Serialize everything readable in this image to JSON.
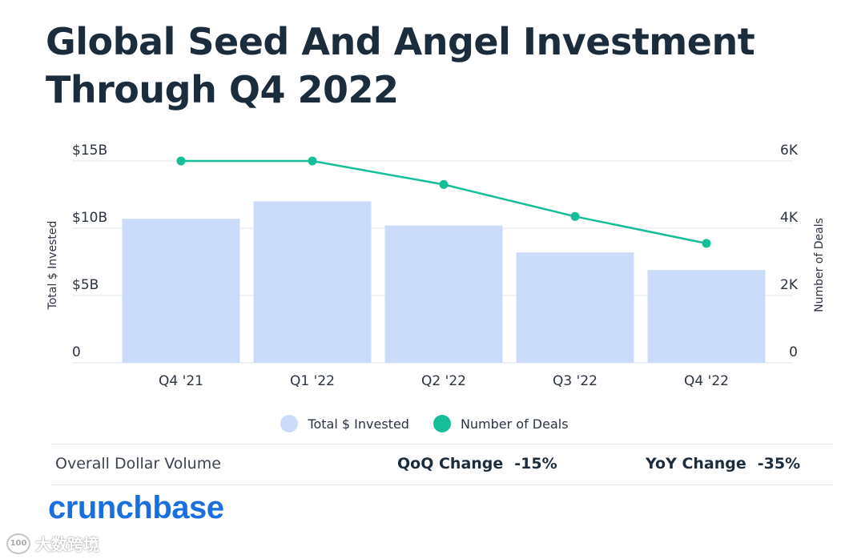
{
  "title_line1": "Global Seed And Angel Investment",
  "title_line2": "Through Q4 2022",
  "chart_data": {
    "type": "bar",
    "title": "Global Seed And Angel Investment Through Q4 2022",
    "categories": [
      "Q4 '21",
      "Q1 '22",
      "Q2 '22",
      "Q3 '22",
      "Q4 '22"
    ],
    "series": [
      {
        "name": "Total $ Invested",
        "type": "bar",
        "axis": "left",
        "unit": "$B",
        "values": [
          10.7,
          12.0,
          10.2,
          8.2,
          6.9
        ],
        "color": "#cbdcfb"
      },
      {
        "name": "Number of Deals",
        "type": "line",
        "axis": "right",
        "values": [
          6000,
          6000,
          5300,
          4350,
          3550
        ],
        "color": "#15bd99"
      }
    ],
    "ylabel": "Total $ Invested",
    "ylabel_right": "Number of Deals",
    "ylim": [
      0,
      15
    ],
    "ylim_right": [
      0,
      6000
    ],
    "yticks": [
      "0",
      "$5B",
      "$10B",
      "$15B"
    ],
    "yticks_right": [
      "0",
      "2K",
      "4K",
      "6K"
    ],
    "grid": true,
    "legend_position": "bottom-center"
  },
  "legend": {
    "invested": "Total $ Invested",
    "deals": "Number of Deals"
  },
  "summary": {
    "label": "Overall Dollar Volume",
    "qoq_label": "QoQ Change",
    "qoq_value": "-15%",
    "yoy_label": "YoY Change",
    "yoy_value": "-35%"
  },
  "brand": "crunchbase",
  "watermark": "大数跨境",
  "colors": {
    "bar": "#cbdcfb",
    "line": "#15bd99",
    "grid": "#e3e6ea",
    "title": "#1b2c3d",
    "brand": "#1a6fe0"
  }
}
